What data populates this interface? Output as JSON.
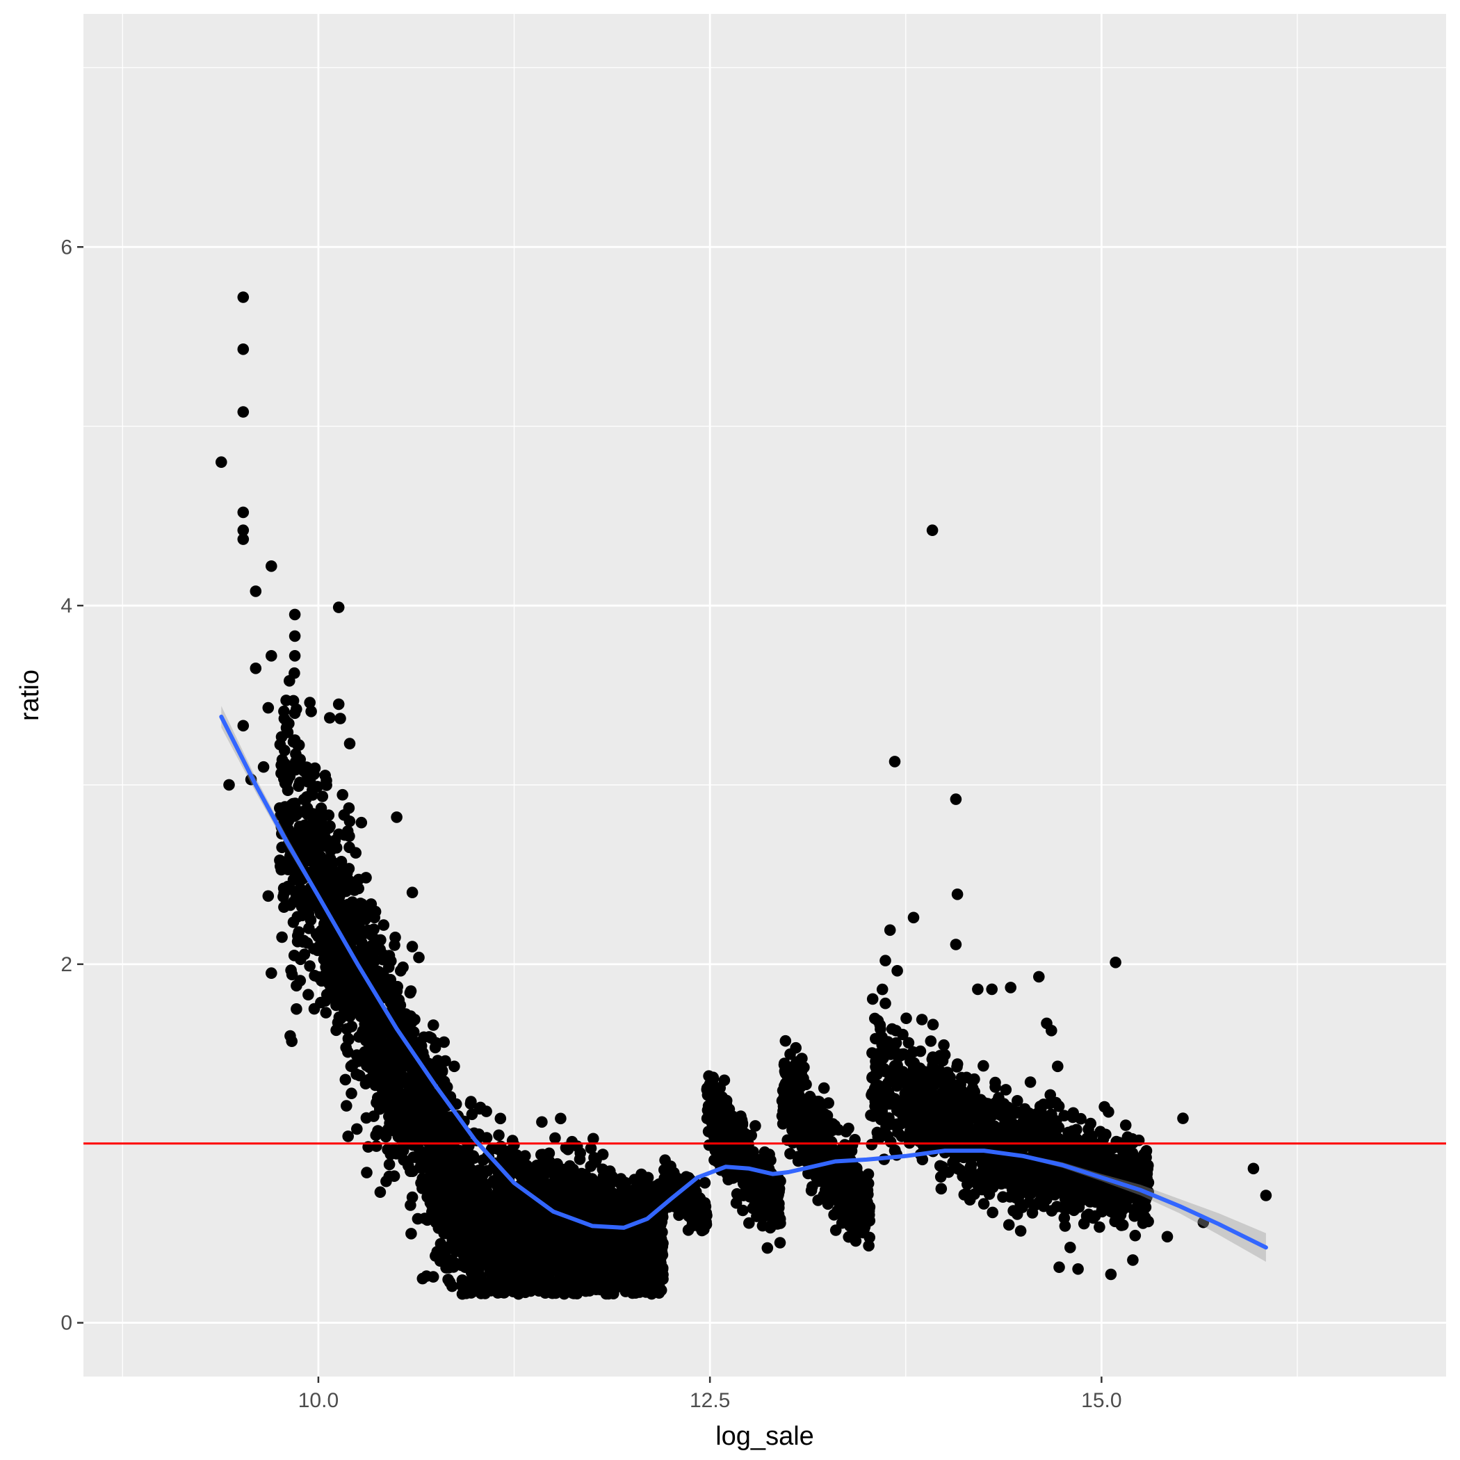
{
  "chart_data": {
    "type": "scatter",
    "xlabel": "log_sale",
    "ylabel": "ratio",
    "xlim": [
      8.5,
      17.2
    ],
    "ylim": [
      -0.3,
      7.3
    ],
    "x_ticks": [
      10.0,
      12.5,
      15.0
    ],
    "x_tick_labels": [
      "10.0",
      "12.5",
      "15.0"
    ],
    "x_minor_ticks": [
      8.75,
      11.25,
      13.75,
      16.25
    ],
    "y_ticks": [
      0,
      2,
      4,
      6
    ],
    "y_tick_labels": [
      "0",
      "2",
      "4",
      "6"
    ],
    "y_minor_ticks": [
      1,
      3,
      5,
      7
    ],
    "grid": true,
    "reference_line": {
      "y": 1.0,
      "color": "#ff0000"
    },
    "colors": {
      "points": "#000000",
      "smooth": "#3366ff",
      "band": "#999999",
      "panel": "#ebebeb",
      "grid": "#ffffff"
    },
    "outliers": [
      {
        "x": 9.38,
        "y": 4.8
      },
      {
        "x": 9.43,
        "y": 3.0
      },
      {
        "x": 9.52,
        "y": 5.72
      },
      {
        "x": 9.52,
        "y": 5.43
      },
      {
        "x": 9.52,
        "y": 5.08
      },
      {
        "x": 9.52,
        "y": 4.52
      },
      {
        "x": 9.52,
        "y": 4.42
      },
      {
        "x": 9.52,
        "y": 4.37
      },
      {
        "x": 9.52,
        "y": 3.33
      },
      {
        "x": 9.57,
        "y": 3.03
      },
      {
        "x": 9.6,
        "y": 3.65
      },
      {
        "x": 9.6,
        "y": 4.08
      },
      {
        "x": 9.65,
        "y": 3.1
      },
      {
        "x": 9.68,
        "y": 2.38
      },
      {
        "x": 9.68,
        "y": 3.43
      },
      {
        "x": 9.7,
        "y": 1.95
      },
      {
        "x": 9.7,
        "y": 4.22
      },
      {
        "x": 9.7,
        "y": 3.72
      },
      {
        "x": 9.78,
        "y": 3.41
      },
      {
        "x": 9.8,
        "y": 3.35
      },
      {
        "x": 9.85,
        "y": 3.95
      },
      {
        "x": 9.85,
        "y": 3.83
      },
      {
        "x": 9.85,
        "y": 3.72
      },
      {
        "x": 9.85,
        "y": 3.4
      },
      {
        "x": 9.85,
        "y": 3.25
      },
      {
        "x": 9.82,
        "y": 1.6
      },
      {
        "x": 9.86,
        "y": 1.75
      },
      {
        "x": 9.86,
        "y": 1.88
      },
      {
        "x": 10.13,
        "y": 3.99
      },
      {
        "x": 10.13,
        "y": 3.45
      },
      {
        "x": 10.14,
        "y": 3.37
      },
      {
        "x": 10.2,
        "y": 3.23
      },
      {
        "x": 10.19,
        "y": 1.04
      },
      {
        "x": 10.27,
        "y": 1.48
      },
      {
        "x": 10.5,
        "y": 2.82
      },
      {
        "x": 10.6,
        "y": 2.4
      },
      {
        "x": 10.6,
        "y": 0.7
      },
      {
        "x": 10.75,
        "y": 0.56
      },
      {
        "x": 13.68,
        "y": 3.13
      },
      {
        "x": 13.92,
        "y": 4.42
      },
      {
        "x": 14.07,
        "y": 2.92
      },
      {
        "x": 14.08,
        "y": 2.39
      },
      {
        "x": 14.07,
        "y": 2.11
      },
      {
        "x": 13.8,
        "y": 2.26
      },
      {
        "x": 13.65,
        "y": 2.19
      },
      {
        "x": 13.62,
        "y": 2.02
      },
      {
        "x": 14.21,
        "y": 1.86
      },
      {
        "x": 14.3,
        "y": 1.86
      },
      {
        "x": 14.42,
        "y": 1.87
      },
      {
        "x": 14.6,
        "y": 1.93
      },
      {
        "x": 14.65,
        "y": 1.67
      },
      {
        "x": 14.68,
        "y": 1.63
      },
      {
        "x": 14.72,
        "y": 1.43
      },
      {
        "x": 15.09,
        "y": 2.01
      },
      {
        "x": 15.52,
        "y": 1.14
      },
      {
        "x": 15.97,
        "y": 0.86
      },
      {
        "x": 16.05,
        "y": 0.71
      },
      {
        "x": 15.65,
        "y": 0.56
      },
      {
        "x": 15.42,
        "y": 0.48
      },
      {
        "x": 15.2,
        "y": 0.35
      },
      {
        "x": 15.06,
        "y": 0.27
      },
      {
        "x": 14.85,
        "y": 0.3
      },
      {
        "x": 14.73,
        "y": 0.31
      },
      {
        "x": 14.8,
        "y": 0.42
      },
      {
        "x": 15.26,
        "y": 0.62
      }
    ],
    "clusters": [
      {
        "x0": 9.75,
        "x1": 12.2,
        "y_start": 2.9,
        "y_mid": 0.55,
        "y_end": 0.45,
        "spread0": 0.85,
        "spread1": 0.35,
        "n": 3600
      },
      {
        "x0": 12.2,
        "x1": 12.48,
        "y_start": 0.82,
        "y_mid": 0.7,
        "y_end": 0.58,
        "spread0": 0.15,
        "spread1": 0.12,
        "n": 260
      },
      {
        "x0": 12.48,
        "x1": 12.95,
        "y_start": 1.2,
        "y_mid": 0.9,
        "y_end": 0.65,
        "spread0": 0.28,
        "spread1": 0.2,
        "n": 450
      },
      {
        "x0": 12.95,
        "x1": 13.52,
        "y_start": 1.3,
        "y_mid": 0.95,
        "y_end": 0.62,
        "spread0": 0.35,
        "spread1": 0.25,
        "n": 550
      },
      {
        "x0": 13.52,
        "x1": 15.3,
        "y_start": 1.4,
        "y_mid": 0.95,
        "y_end": 0.75,
        "spread0": 0.45,
        "spread1": 0.25,
        "n": 1500
      }
    ],
    "smooth_line": {
      "method": "loess",
      "x": [
        9.38,
        9.6,
        9.8,
        10.0,
        10.25,
        10.5,
        10.75,
        11.0,
        11.25,
        11.5,
        11.75,
        11.95,
        12.1,
        12.25,
        12.42,
        12.6,
        12.75,
        12.9,
        13.0,
        13.15,
        13.3,
        13.5,
        13.75,
        14.0,
        14.25,
        14.5,
        14.75,
        15.0,
        15.25,
        15.5,
        15.75,
        16.05
      ],
      "y": [
        3.38,
        3.0,
        2.68,
        2.38,
        2.0,
        1.64,
        1.32,
        1.02,
        0.78,
        0.62,
        0.54,
        0.53,
        0.58,
        0.69,
        0.81,
        0.87,
        0.86,
        0.83,
        0.84,
        0.87,
        0.9,
        0.91,
        0.93,
        0.96,
        0.96,
        0.93,
        0.88,
        0.81,
        0.74,
        0.65,
        0.55,
        0.42
      ],
      "band_halfwidth": [
        0.06,
        0.04,
        0.03,
        0.02,
        0.015,
        0.01,
        0.01,
        0.01,
        0.01,
        0.01,
        0.01,
        0.01,
        0.01,
        0.01,
        0.01,
        0.01,
        0.01,
        0.01,
        0.01,
        0.01,
        0.01,
        0.01,
        0.01,
        0.01,
        0.01,
        0.01,
        0.015,
        0.02,
        0.03,
        0.04,
        0.06,
        0.08
      ]
    }
  }
}
